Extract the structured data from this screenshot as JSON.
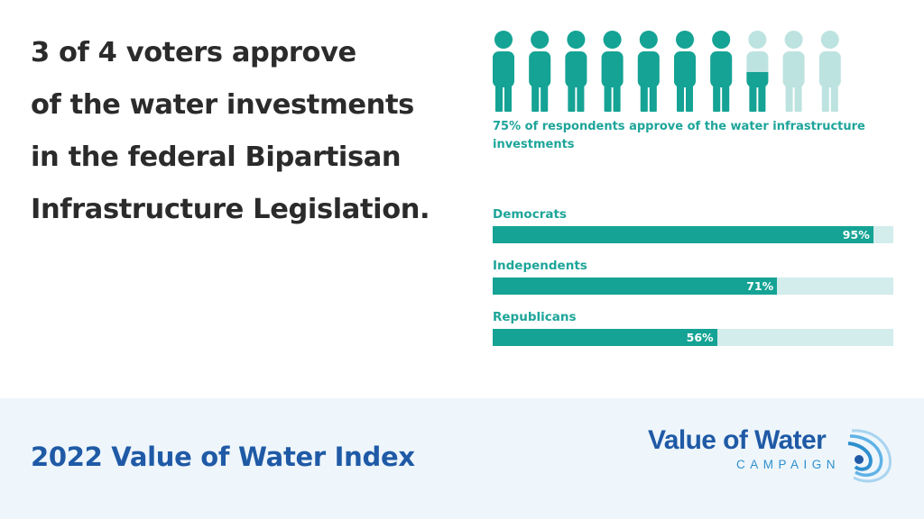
{
  "headline": {
    "lines": [
      "3 of 4 voters approve",
      "of the water investments",
      "in the federal Bipartisan",
      "Infrastructure Legislation."
    ]
  },
  "pictogram": {
    "total": 10,
    "filled_fraction": 0.75,
    "filled_color": "#14a394",
    "empty_color": "#bde3e0",
    "icon": "person-icon"
  },
  "caption": "75% of respondents approve of the water infrastructure investments",
  "chart_data": {
    "type": "bar",
    "orientation": "horizontal",
    "categories": [
      "Democrats",
      "Independents",
      "Republicans"
    ],
    "values": [
      95,
      71,
      56
    ],
    "value_labels": [
      "95%",
      "71%",
      "56%"
    ],
    "xlim": [
      0,
      100
    ],
    "grid": false,
    "colors": {
      "fill": "#14a394",
      "track": "#d3ecec",
      "label": "#1ea59a"
    }
  },
  "footer": {
    "title": "2022 Value of Water Index",
    "logo_name": "Value of Water",
    "logo_sub": "CAMPAIGN",
    "colors": {
      "background": "#eef6fb",
      "title": "#1f5aa6",
      "logo_sub": "#2e8fcf"
    }
  }
}
